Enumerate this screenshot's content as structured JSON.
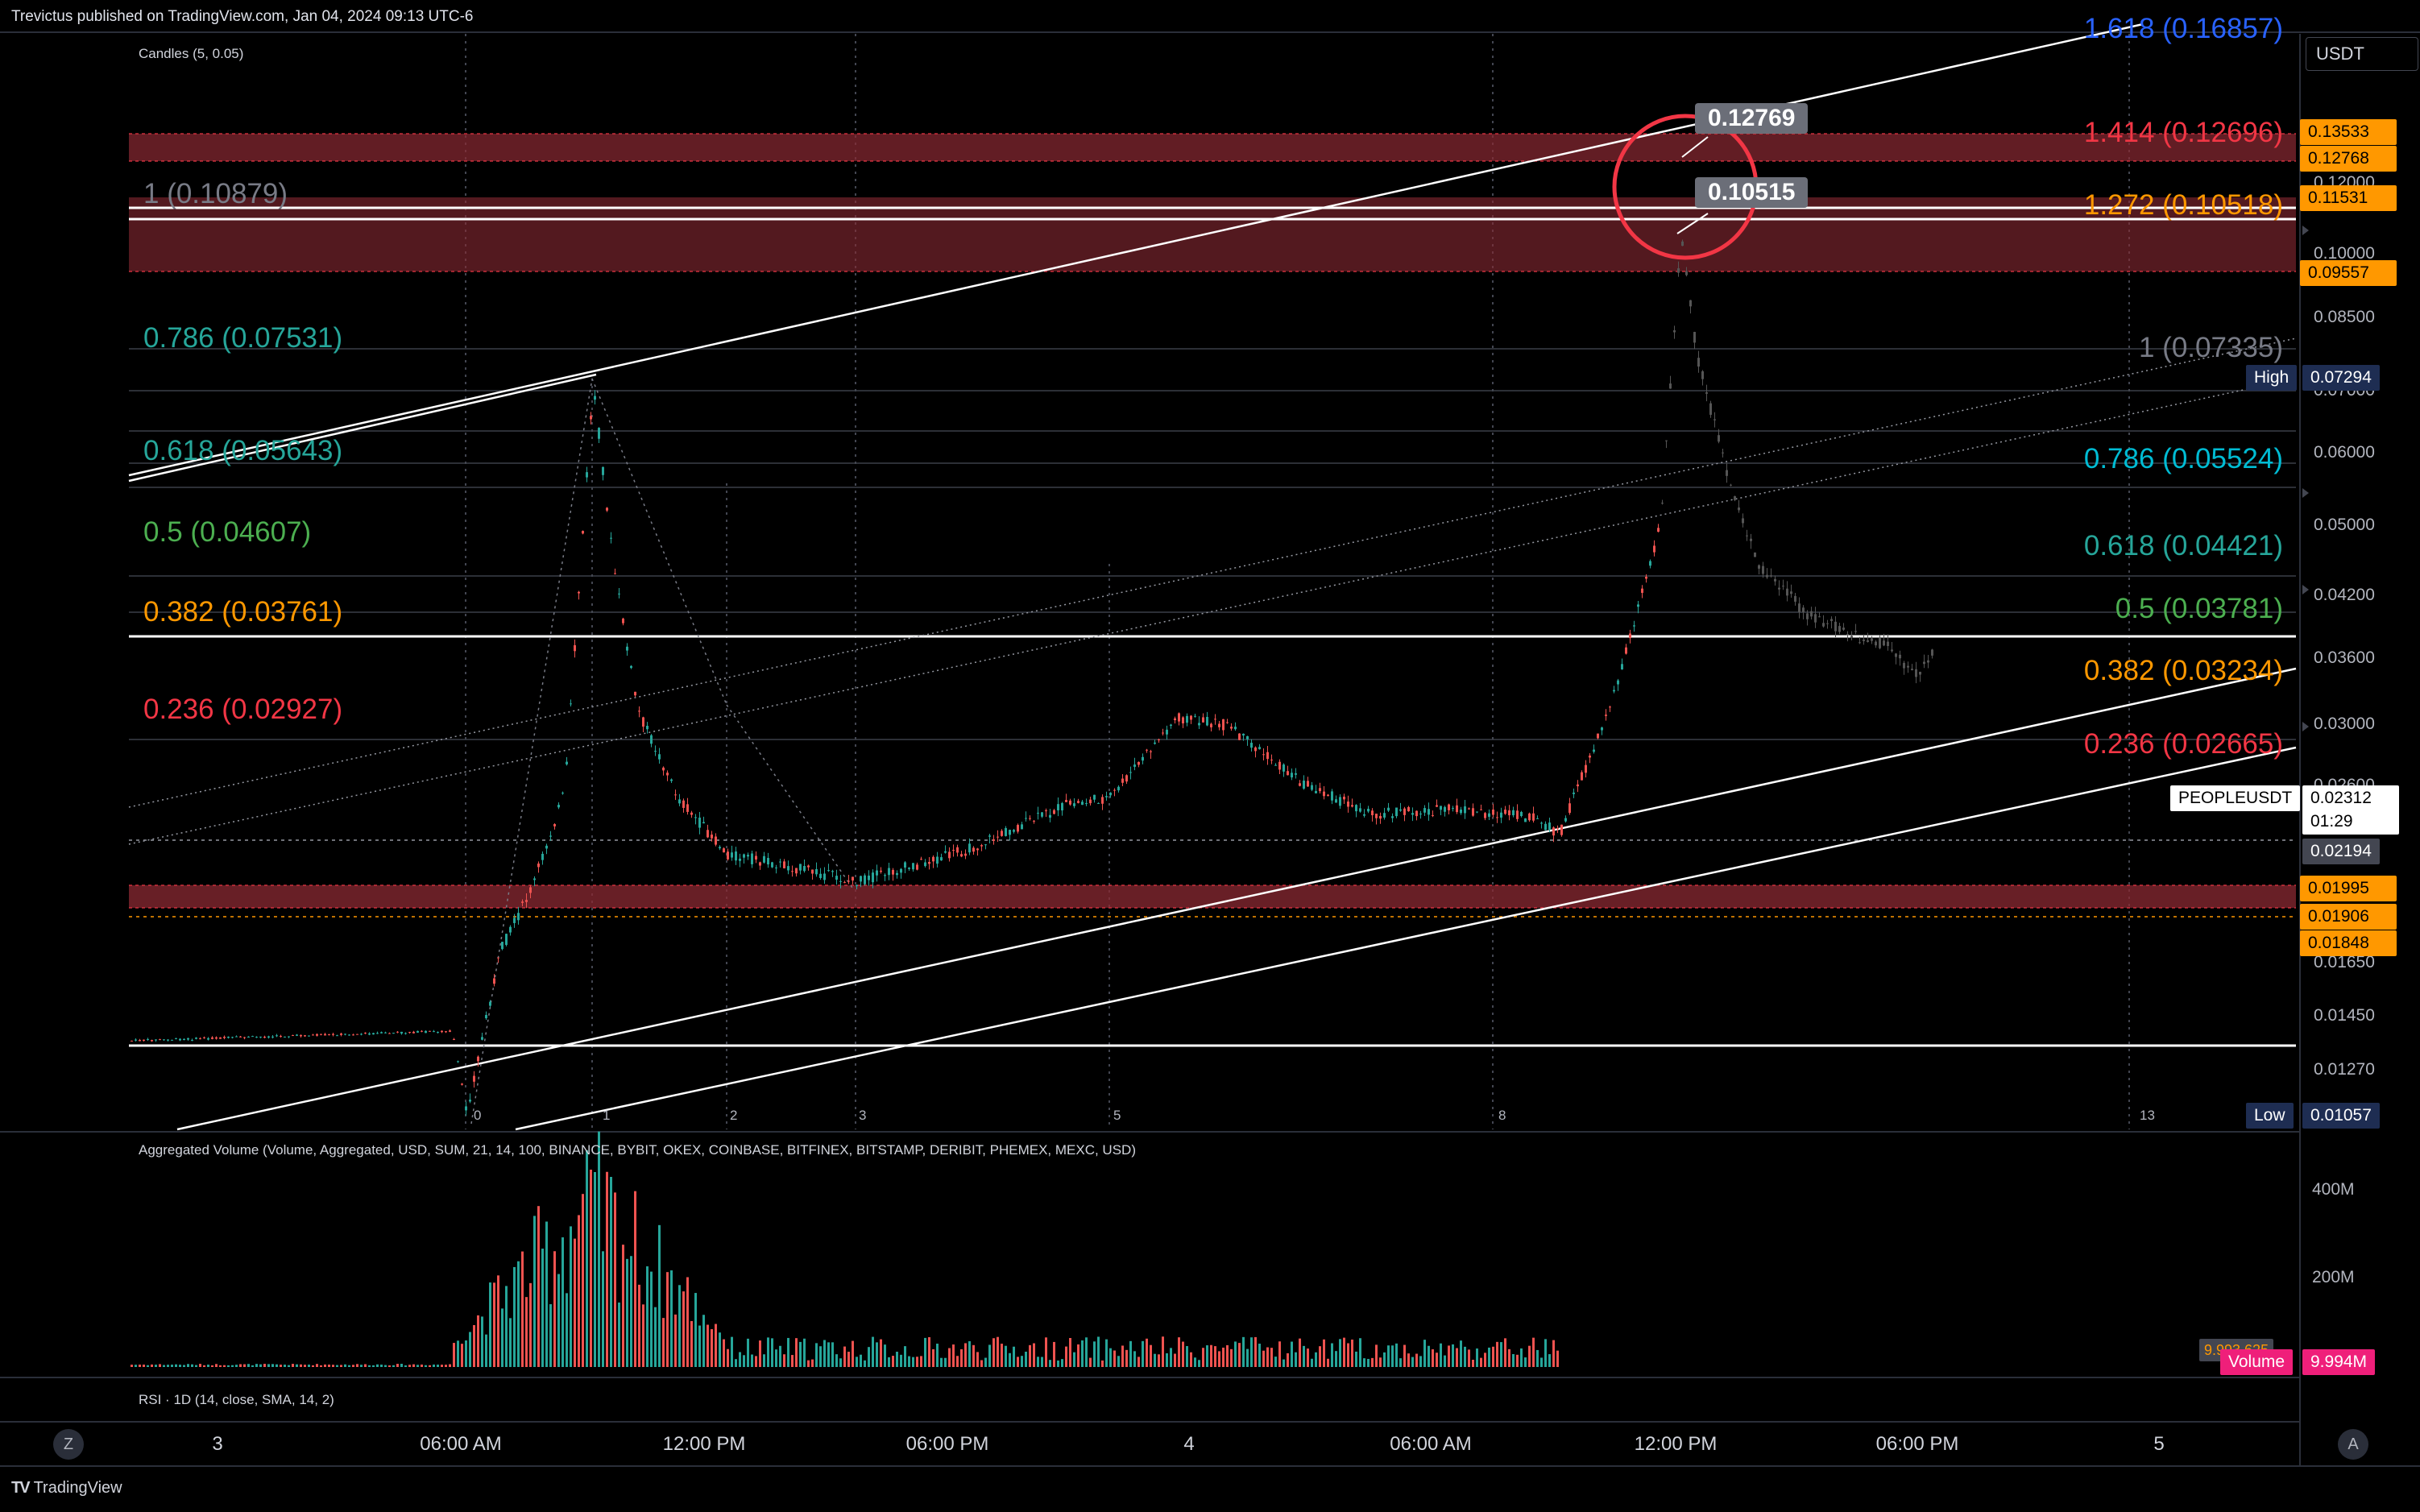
{
  "publish_info": "Trevictus published on TradingView.com, Jan 04, 2024 09:13 UTC-6",
  "main_indicator": "Candles (5, 0.05)",
  "currency_button": "USDT",
  "volume_indicator": "Aggregated Volume (Volume, Aggregated, USD, SUM, 21, 14, 100, BINANCE, BYBIT, OKEX, COINBASE, BITFINEX, BITSTAMP, DERIBIT, PHEMEX, MEXC, USD)",
  "rsi_indicator": "RSI · 1D (14, close, SMA, 14, 2)",
  "brand": "TradingView",
  "price_axis": [
    "0.12000",
    "0.10000",
    "0.08500",
    "0.07000",
    "0.06000",
    "0.05000",
    "0.04200",
    "0.03600",
    "0.03000",
    "0.02600",
    "0.01650",
    "0.01450",
    "0.01270"
  ],
  "price_tags": [
    {
      "label": "0.13533",
      "color": "#ff9800"
    },
    {
      "label": "0.12768",
      "color": "#ff9800"
    },
    {
      "label": "0.11531",
      "color": "#ff9800"
    },
    {
      "label": "0.09557",
      "color": "#ff9800"
    },
    {
      "label": "0.01995",
      "color": "#ff9800"
    },
    {
      "label": "0.01906",
      "color": "#ff9800"
    },
    {
      "label": "0.01848",
      "color": "#ff9800"
    }
  ],
  "high_label": "High",
  "high_value": "0.07294",
  "low_label": "Low",
  "low_value": "0.01057",
  "symbol": "PEOPLEUSDT",
  "last_price": "0.02312",
  "countdown": "01:29",
  "prev_price": "0.02194",
  "fib_left": [
    {
      "text": "1 (0.10879)",
      "color": "#787b86"
    },
    {
      "text": "0.786 (0.07531)",
      "color": "#26a69a"
    },
    {
      "text": "0.618 (0.05643)",
      "color": "#26a69a"
    },
    {
      "text": "0.5 (0.04607)",
      "color": "#4caf50"
    },
    {
      "text": "0.382 (0.03761)",
      "color": "#ff9800"
    },
    {
      "text": "0.236 (0.02927)",
      "color": "#f23645"
    }
  ],
  "fib_right": [
    {
      "text": "1.618 (0.16857)",
      "color": "#2962ff"
    },
    {
      "text": "1.414 (0.12696)",
      "color": "#f23645"
    },
    {
      "text": "1.272 (0.10518)",
      "color": "#ff9800"
    },
    {
      "text": "1 (0.07335)",
      "color": "#787b86"
    },
    {
      "text": "0.786 (0.05524)",
      "color": "#00bcd4"
    },
    {
      "text": "0.618 (0.04421)",
      "color": "#26a69a"
    },
    {
      "text": "0.5 (0.03781)",
      "color": "#4caf50"
    },
    {
      "text": "0.382 (0.03234)",
      "color": "#ff9800"
    },
    {
      "text": "0.236 (0.02665)",
      "color": "#f23645"
    }
  ],
  "callouts": [
    "0.12769",
    "0.10515"
  ],
  "wave_counts": [
    "0",
    "1",
    "2",
    "3",
    "5",
    "8",
    "13"
  ],
  "volume_axis": [
    "400M",
    "200M"
  ],
  "volume_label": "Volume",
  "volume_value": "9.994M",
  "volume_ghost": "9.993.625",
  "time_axis": [
    "3",
    "06:00 AM",
    "12:00 PM",
    "06:00 PM",
    "4",
    "06:00 AM",
    "12:00 PM",
    "06:00 PM",
    "5"
  ],
  "nav_left": "Z",
  "nav_right": "A",
  "colors": {
    "up": "#26a69a",
    "down": "#ef5350",
    "zone": "#8b2a33",
    "accent": "#ff9800"
  }
}
